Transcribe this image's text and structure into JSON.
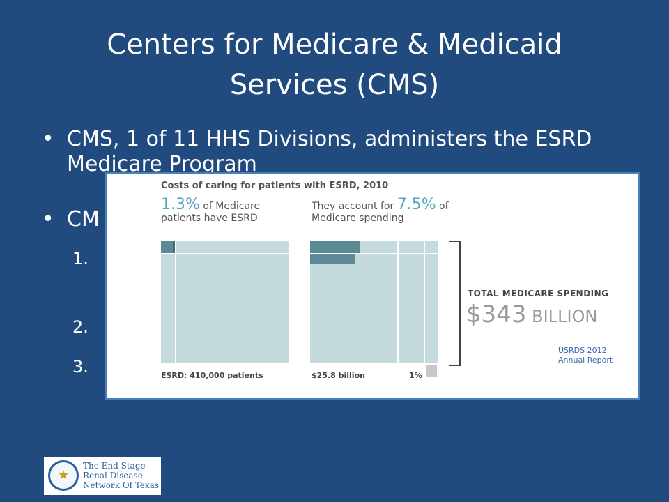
{
  "slide": {
    "title": "Centers for Medicare & Medicaid Services (CMS)",
    "bullets": [
      {
        "marker": "•",
        "text": "CMS, 1 of 11 HHS Divisions, administers the ESRD Medicare Program"
      },
      {
        "marker": "•",
        "text": "CM"
      }
    ],
    "numbers": [
      "1.",
      "2.",
      "3."
    ]
  },
  "figure": {
    "title": "Costs of caring for patients with ESRD, 2010",
    "left_heading": {
      "pct": "1.3%",
      "text": " of Medicare patients have ESRD"
    },
    "right_heading": {
      "prefix": "They account for ",
      "pct": "7.5%",
      "suffix": " of Medicare spending"
    },
    "left_footer": "ESRD: 410,000 patients",
    "right_footer": "$25.8 billion",
    "right_footer_small": "1%",
    "total_label": "TOTAL MEDICARE SPENDING",
    "total_amount": "$343",
    "total_unit": " BILLION",
    "source": "USRDS 2012 Annual Report",
    "colors": {
      "bar": "#5b8a96",
      "panel": "#c4dadc",
      "accent": "#5aa6c0"
    }
  },
  "logo": {
    "text": "The End Stage Renal Disease Network Of Texas",
    "icon": "texas-seal-icon"
  }
}
